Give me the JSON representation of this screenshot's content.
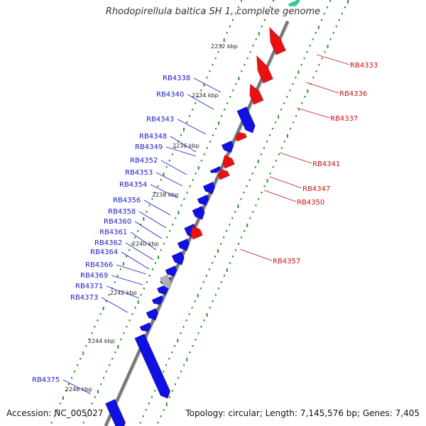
{
  "title": "Rhodopirellula baltica SH 1, complete genome",
  "accession": "Accession: NC_005027",
  "topology": "Topology: circular; Length: 7,145,576 bp; Genes: 7,405",
  "colors": {
    "forward_gene": "#1010e0",
    "reverse_gene": "#e81010",
    "pseudo_gene": "#b0b0b8",
    "rna_gene": "#30d090",
    "backbone": "#777777",
    "gc_dots": "#2a9a2a",
    "forward_label": "#1a1acc",
    "reverse_label": "#cc1111"
  },
  "kbp_ticks": [
    "2232 kbp",
    "2234 kbp",
    "2236 kbp",
    "2238 kbp",
    "2240 kbp",
    "2242 kbp",
    "2244 kbp",
    "2246 kbp"
  ],
  "forward_labels": [
    "RB4338",
    "RB4340",
    "RB4343",
    "RB4348",
    "RB4349",
    "RB4352",
    "RB4353",
    "RB4354",
    "RB4356",
    "RB4358",
    "RB4360",
    "RB4361",
    "RB4362",
    "RB4364",
    "RB4366",
    "RB4369",
    "RB4371",
    "RB4373",
    "RB4375"
  ],
  "reverse_labels": [
    "RB4333",
    "RB4336",
    "RB4337",
    "RB4341",
    "RB4347",
    "RB4350",
    "RB4357"
  ]
}
